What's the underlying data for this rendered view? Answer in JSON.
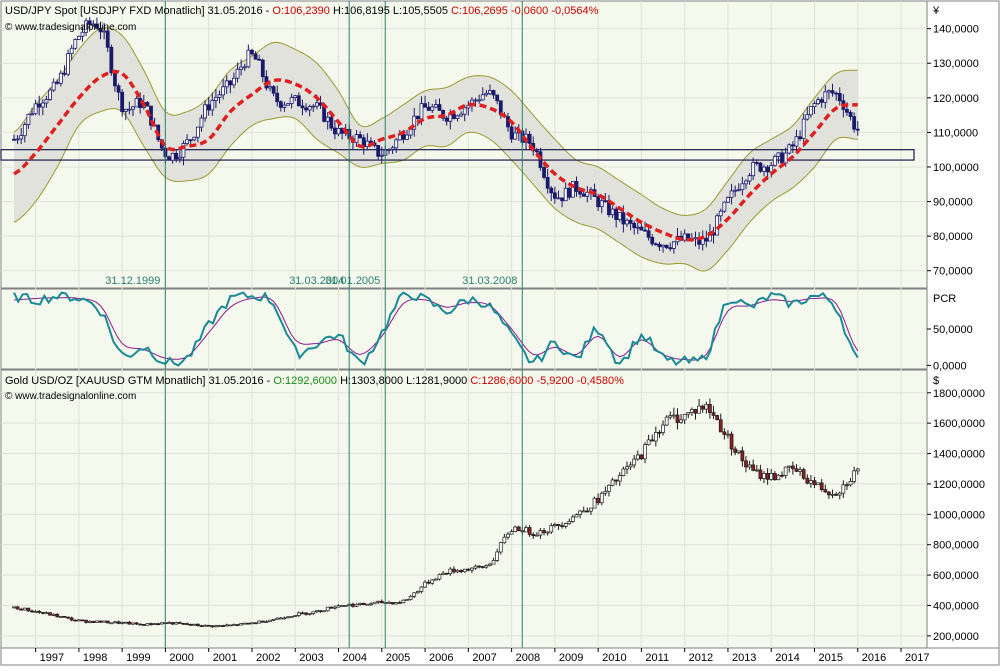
{
  "colors": {
    "background": "#f5f8ec",
    "grid": "#e0e4d8",
    "band_fill": "#e2e2dc",
    "band_line": "#9a9a30",
    "moving_average": "#e02020",
    "candle": "#1a1a6a",
    "vline": "#2a8070",
    "pcr_main": "#1a8a96",
    "pcr_signal": "#8b1a8b",
    "gold_candle": "#1a1a1a",
    "gold_down": "#8a2020",
    "header_green": "#1a8a1a",
    "header_red": "#cc0000"
  },
  "panel1": {
    "title_name": "USD/JPY Spot [USDJPY FXD  Monatlich] 31.05.2016 - ",
    "open": "O:106,2390",
    "high": "H:106,8195",
    "low": "L:105,5505",
    "close": "C:106,2695 -0,0600 -0,0564%",
    "source": "© www.tradesignalonline.com",
    "currency": "¥",
    "axis_labels": [
      "140,0000",
      "130,0000",
      "120,0000",
      "110,0000",
      "100,0000",
      "90,0000",
      "80,0000",
      "70,0000"
    ]
  },
  "panel2": {
    "label": "PCR",
    "axis_labels": [
      "50,0000",
      "0,0000"
    ]
  },
  "panel3": {
    "title_name": "Gold USD/OZ [XAUUSD GTM  Monatlich] 31.05.2016 - ",
    "open": "O:1292,6000",
    "high": "H:1303,8000",
    "low": "L:1281,9000",
    "close": "C:1286,6000 -5,9200 -0,4580%",
    "source": "© www.tradesignalonline.com",
    "currency": "$",
    "axis_labels": [
      "1800,0000",
      "1600,0000",
      "1400,0000",
      "1200,0000",
      "1000,0000",
      "800,0000",
      "600,0000",
      "400,0000",
      "200,0000"
    ]
  },
  "vline_labels": [
    "31.12.1999",
    "31.03.2004",
    "31.01.2005",
    "31.03.2008"
  ],
  "x_axis_years": [
    "1997",
    "1998",
    "1999",
    "2000",
    "2001",
    "2002",
    "2003",
    "2004",
    "2005",
    "2006",
    "2007",
    "2008",
    "2009",
    "2010",
    "2011",
    "2012",
    "2013",
    "2014",
    "2015",
    "2016",
    "2017"
  ],
  "chart_data": [
    {
      "type": "line",
      "title": "USD/JPY Spot [USDJPY FXD  Monatlich] 31.05.2016",
      "x": [
        "1996.5",
        "1997",
        "1997.5",
        "1998",
        "1998.5",
        "1999",
        "1999.5",
        "2000",
        "2000.5",
        "2001",
        "2001.5",
        "2002",
        "2002.5",
        "2003",
        "2003.5",
        "2004",
        "2004.5",
        "2005",
        "2005.5",
        "2006",
        "2006.5",
        "2007",
        "2007.5",
        "2008",
        "2008.5",
        "2009",
        "2009.5",
        "2010",
        "2010.5",
        "2011",
        "2011.5",
        "2012",
        "2012.5",
        "2013",
        "2013.5",
        "2014",
        "2014.5",
        "2015",
        "2015.5",
        "2016"
      ],
      "series": [
        {
          "values": [
            108,
            118,
            124,
            138,
            140,
            118,
            118,
            104,
            107,
            118,
            124,
            132,
            120,
            119,
            117,
            110,
            108,
            104,
            110,
            117,
            115,
            118,
            121,
            110,
            106,
            92,
            94,
            90,
            85,
            81,
            78,
            79,
            79,
            90,
            99,
            101,
            106,
            118,
            121,
            111
          ]
        },
        {
          "values": [
            98,
            104,
            112,
            120,
            126,
            127,
            118,
            106,
            106,
            108,
            116,
            121,
            125,
            124,
            120,
            113,
            106,
            108,
            110,
            114,
            115,
            118,
            117,
            113,
            105,
            98,
            94,
            92,
            88,
            84,
            81,
            79,
            80,
            85,
            92,
            98,
            103,
            110,
            117,
            118
          ]
        },
        {
          "values": [
            84,
            90,
            100,
            112,
            116,
            116,
            106,
            97,
            96,
            98,
            106,
            112,
            114,
            114,
            108,
            104,
            100,
            101,
            102,
            106,
            106,
            110,
            108,
            102,
            95,
            88,
            84,
            82,
            78,
            74,
            72,
            72,
            70,
            76,
            84,
            90,
            94,
            100,
            108,
            108
          ]
        },
        {
          "values": [
            110,
            118,
            125,
            134,
            140,
            138,
            128,
            116,
            116,
            120,
            128,
            132,
            136,
            134,
            130,
            122,
            112,
            114,
            118,
            122,
            123,
            126,
            126,
            122,
            115,
            108,
            102,
            100,
            96,
            92,
            88,
            86,
            88,
            96,
            104,
            108,
            112,
            120,
            127,
            128
          ]
        }
      ],
      "ylim": [
        65,
        148
      ],
      "xlim": [
        1996.2,
        2017.6
      ]
    },
    {
      "type": "line",
      "title": "",
      "ylabel": "PCR",
      "x": [
        "1996.5",
        "1997",
        "1997.5",
        "1998",
        "1998.5",
        "1999",
        "1999.5",
        "2000",
        "2000.5",
        "2001",
        "2001.5",
        "2002",
        "2002.5",
        "2003",
        "2003.5",
        "2004",
        "2004.5",
        "2005",
        "2005.5",
        "2006",
        "2006.5",
        "2007",
        "2007.5",
        "2008",
        "2008.5",
        "2009",
        "2009.5",
        "2010",
        "2010.5",
        "2011",
        "2011.5",
        "2012",
        "2012.5",
        "2013",
        "2013.5",
        "2014",
        "2014.5",
        "2015",
        "2015.5",
        "2016"
      ],
      "series": [
        {
          "values": [
            95,
            90,
            95,
            92,
            75,
            15,
            25,
            5,
            10,
            55,
            90,
            95,
            85,
            20,
            30,
            40,
            5,
            45,
            95,
            90,
            75,
            90,
            80,
            40,
            5,
            30,
            10,
            50,
            5,
            40,
            10,
            5,
            15,
            90,
            80,
            95,
            85,
            95,
            80,
            5
          ]
        },
        {
          "values": [
            90,
            92,
            93,
            92,
            82,
            30,
            22,
            10,
            12,
            45,
            80,
            92,
            88,
            35,
            30,
            35,
            15,
            40,
            85,
            90,
            80,
            86,
            82,
            50,
            15,
            25,
            15,
            40,
            12,
            35,
            15,
            8,
            15,
            75,
            82,
            90,
            88,
            92,
            85,
            20
          ]
        }
      ],
      "ylim": [
        -5,
        105
      ],
      "xlim": [
        1996.2,
        2017.6
      ]
    },
    {
      "type": "line",
      "title": "Gold USD/OZ [XAUUSD GTM  Monatlich] 31.05.2016",
      "x": [
        "1996.5",
        "1997",
        "1997.5",
        "1998",
        "1998.5",
        "1999",
        "1999.5",
        "2000",
        "2000.5",
        "2001",
        "2001.5",
        "2002",
        "2002.5",
        "2003",
        "2003.5",
        "2004",
        "2004.5",
        "2005",
        "2005.5",
        "2006",
        "2006.5",
        "2007",
        "2007.5",
        "2008",
        "2008.5",
        "2009",
        "2009.5",
        "2010",
        "2010.5",
        "2011",
        "2011.5",
        "2012",
        "2012.5",
        "2013",
        "2013.5",
        "2014",
        "2014.5",
        "2015",
        "2015.5",
        "2016"
      ],
      "series": [
        {
          "values": [
            385,
            360,
            330,
            300,
            292,
            285,
            275,
            285,
            275,
            265,
            270,
            285,
            310,
            340,
            360,
            400,
            405,
            420,
            430,
            540,
            620,
            640,
            680,
            900,
            880,
            920,
            1000,
            1100,
            1250,
            1400,
            1600,
            1650,
            1700,
            1500,
            1300,
            1250,
            1290,
            1200,
            1150,
            1287
          ]
        }
      ],
      "ylim": [
        120,
        1950
      ],
      "xlim": [
        1996.2,
        2017.6
      ]
    }
  ]
}
